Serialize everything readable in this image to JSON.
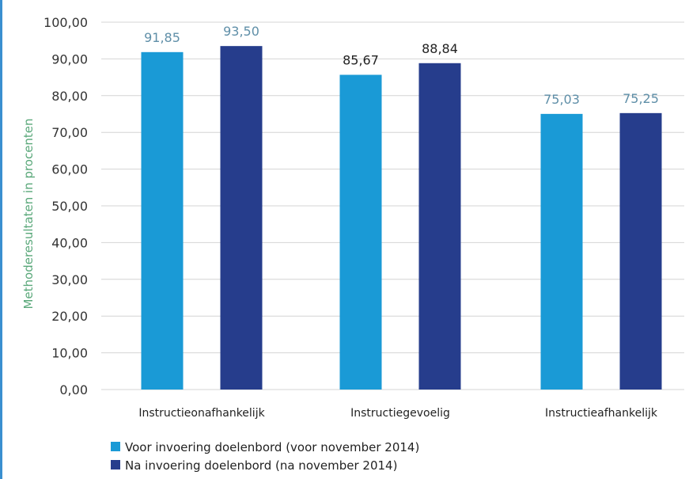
{
  "chart_data": {
    "type": "bar",
    "title": "",
    "xlabel": "",
    "ylabel": "Methoderesultaten in procenten",
    "ylim": [
      0,
      100
    ],
    "y_ticks": [
      "0,00",
      "10,00",
      "20,00",
      "30,00",
      "40,00",
      "50,00",
      "60,00",
      "70,00",
      "80,00",
      "90,00",
      "100,00"
    ],
    "categories": [
      "Instructieonafhankelijk",
      "Instructiegevoelig",
      "Instructieafhankelijk"
    ],
    "series": [
      {
        "name": "Voor invoering doelenbord (voor november 2014)",
        "color": "#1a9ad6",
        "values": [
          91.85,
          85.67,
          75.03
        ],
        "labels": [
          "91,85",
          "85,67",
          "75,03"
        ]
      },
      {
        "name": "Na invoering doelenbord (na november 2014)",
        "color": "#263d8c",
        "values": [
          93.5,
          88.84,
          75.25
        ],
        "labels": [
          "93,50",
          "88,84",
          "75,25"
        ]
      }
    ],
    "label_colors": [
      "#5f8fa8",
      "#222222",
      "#5f8fa8"
    ],
    "grid": true,
    "legend_position": "bottom-left"
  }
}
